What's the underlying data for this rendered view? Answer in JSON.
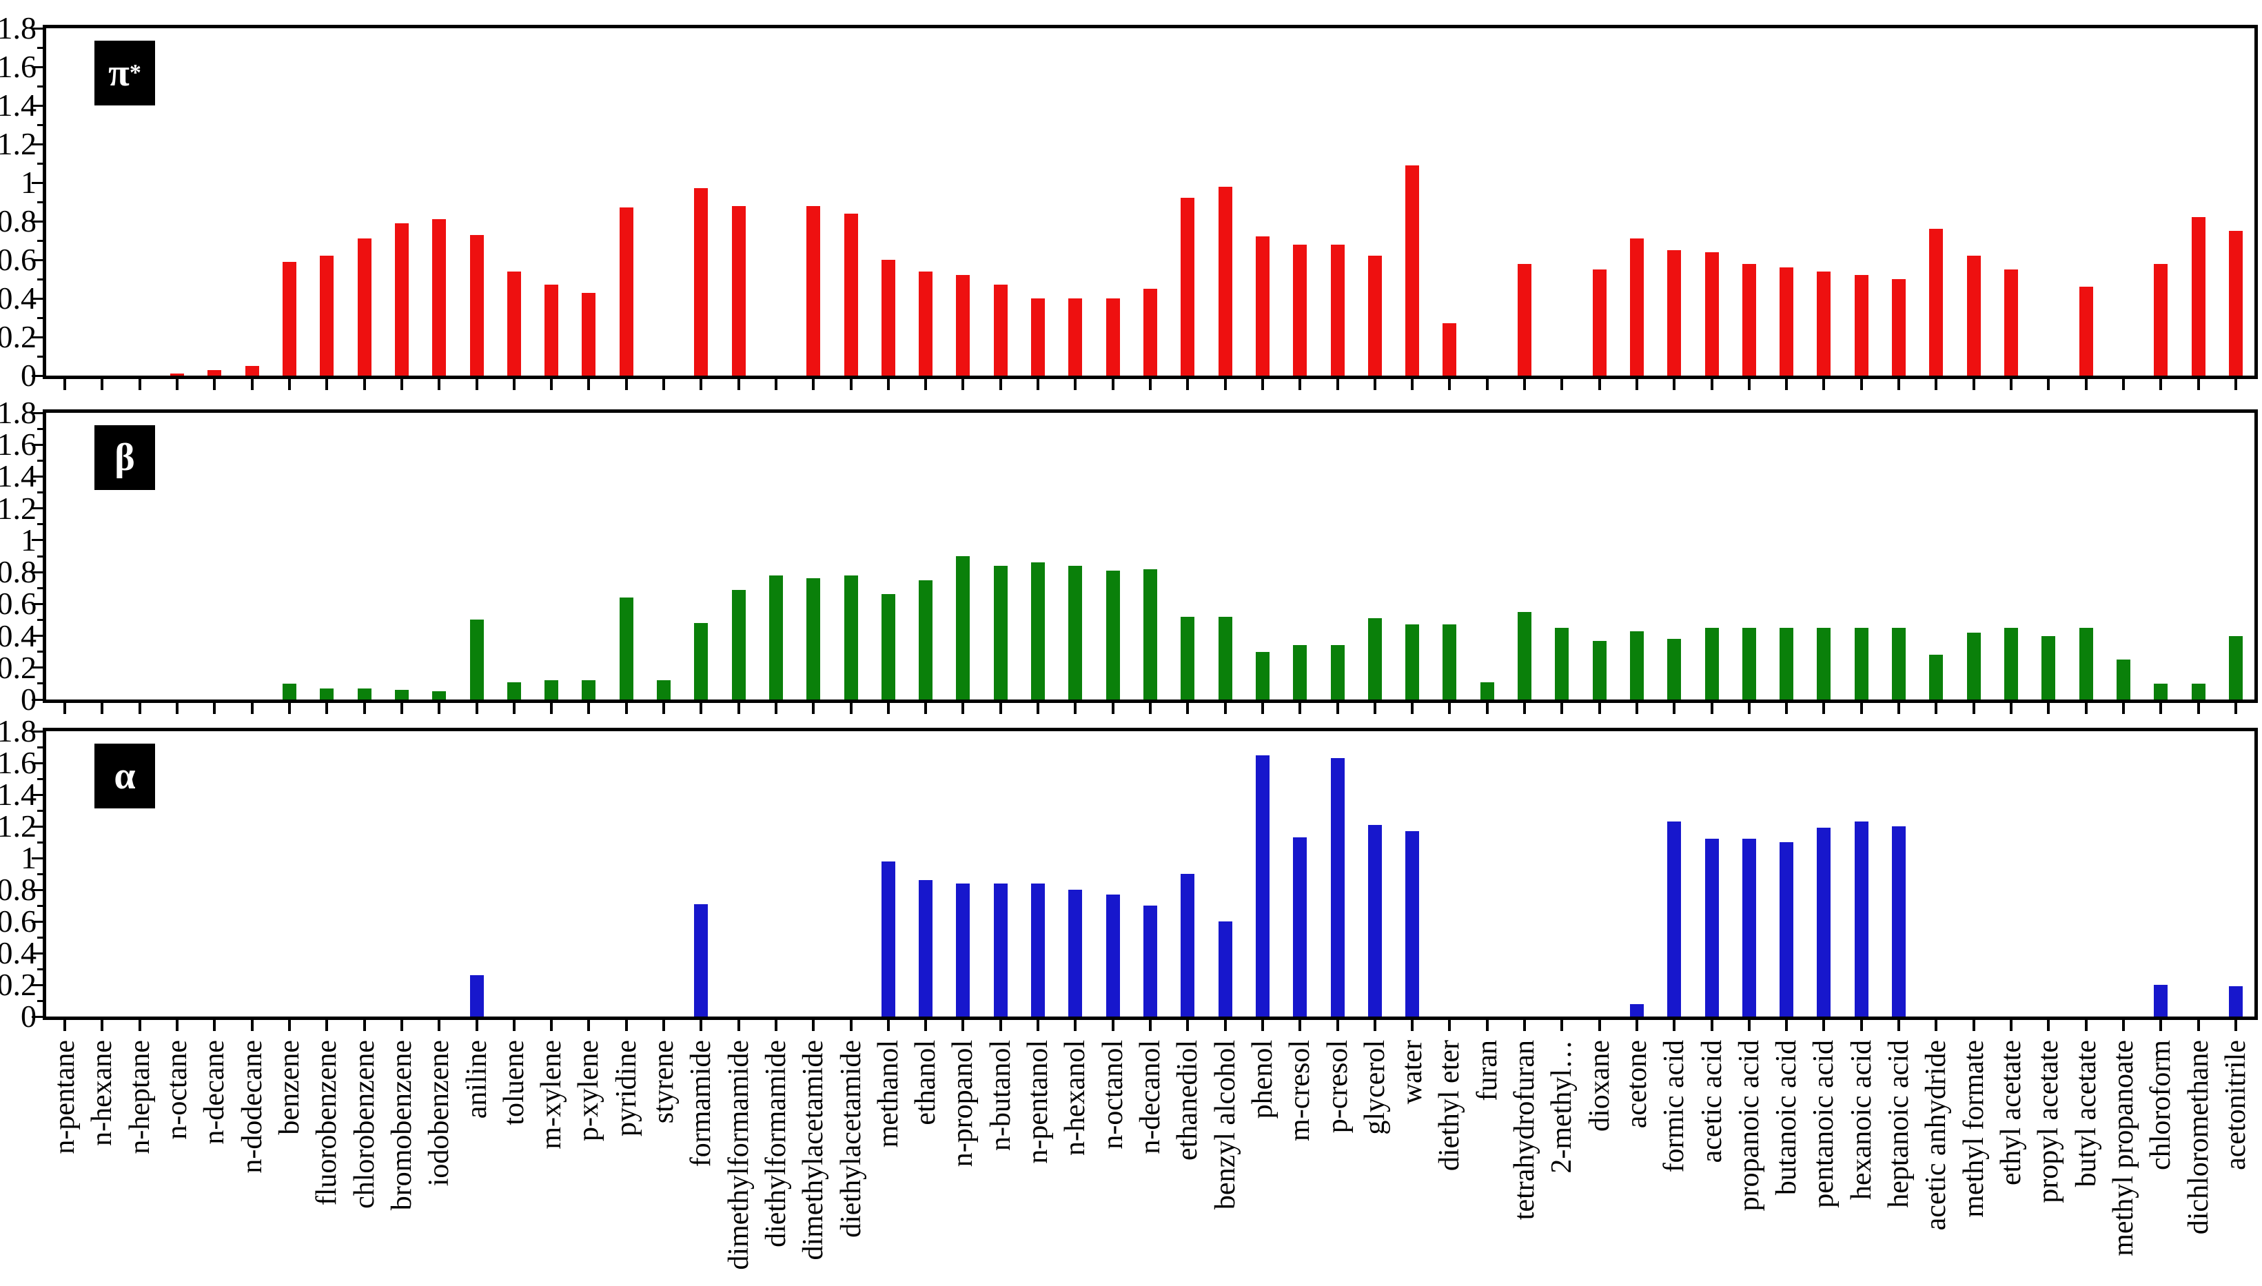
{
  "figure": {
    "background": "#ffffff",
    "font": "serif",
    "panel_frame_color": "#000000",
    "legend_style": "black box with white greek letter, top-left of each panel"
  },
  "chart_data": {
    "type": "bar",
    "grid": false,
    "ylim": [
      0,
      1.8
    ],
    "y_tick_step": 0.2,
    "y_minor_tick_step": 0.1,
    "y_tick_labels": [
      "1.8",
      "1.6",
      "1.4",
      "1.2",
      "1",
      "0.8",
      "0.6",
      "0.4",
      "0.2",
      "0"
    ],
    "categories": [
      "n-pentane",
      "n-hexane",
      "n-heptane",
      "n-octane",
      "n-decane",
      "n-dodecane",
      "benzene",
      "fluorobenzene",
      "chlorobenzene",
      "bromobenzene",
      "iodobenzene",
      "aniline",
      "toluene",
      "m-xylene",
      "p-xylene",
      "pyridine",
      "styrene",
      "formamide",
      "dimethylformamide",
      "diethylformamide",
      "dimethylacetamide",
      "diethylacetamide",
      "methanol",
      "ethanol",
      "n-propanol",
      "n-butanol",
      "n-pentanol",
      "n-hexanol",
      "n-octanol",
      "n-decanol",
      "ethanediol",
      "benzyl alcohol",
      "phenol",
      "m-cresol",
      "p-cresol",
      "glycerol",
      "water",
      "diethyl eter",
      "furan",
      "tetrahydrofuran",
      "2-methyl…",
      "dioxane",
      "acetone",
      "formic acid",
      "acetic acid",
      "propanoic acid",
      "butanoic acid",
      "pentanoic acid",
      "hexanoic acid",
      "heptanoic acid",
      "acetic anhydride",
      "methyl formate",
      "ethyl acetate",
      "propyl acetate",
      "butyl acetate",
      "methyl propanoate",
      "chloroform",
      "dichloromethane",
      "acetonitrile"
    ],
    "series": [
      {
        "name": "π*",
        "symbol": "π",
        "sup": "*",
        "color": "#ee1010",
        "values": [
          0,
          0,
          0,
          0.01,
          0.03,
          0.05,
          0.59,
          0.62,
          0.71,
          0.79,
          0.81,
          0.73,
          0.54,
          0.47,
          0.43,
          0.87,
          0,
          0.97,
          0.88,
          0,
          0.88,
          0.84,
          0.6,
          0.54,
          0.52,
          0.47,
          0.4,
          0.4,
          0.4,
          0.45,
          0.92,
          0.98,
          0.72,
          0.68,
          0.68,
          0.62,
          1.09,
          0.27,
          0,
          0.58,
          0,
          0.55,
          0.71,
          0.65,
          0.64,
          0.58,
          0.56,
          0.54,
          0.52,
          0.5,
          0.76,
          0.62,
          0.55,
          0,
          0.46,
          0,
          0.58,
          0.82,
          0.75
        ]
      },
      {
        "name": "β",
        "symbol": "β",
        "sup": "",
        "color": "#0a800a",
        "values": [
          0,
          0,
          0,
          0,
          0,
          0,
          0.1,
          0.07,
          0.07,
          0.06,
          0.05,
          0.5,
          0.11,
          0.12,
          0.12,
          0.64,
          0.12,
          0.48,
          0.69,
          0.78,
          0.76,
          0.78,
          0.66,
          0.75,
          0.9,
          0.84,
          0.86,
          0.84,
          0.81,
          0.82,
          0.52,
          0.52,
          0.3,
          0.34,
          0.34,
          0.51,
          0.47,
          0.47,
          0.11,
          0.55,
          0.45,
          0.37,
          0.43,
          0.38,
          0.45,
          0.45,
          0.45,
          0.45,
          0.45,
          0.45,
          0.28,
          0.42,
          0.45,
          0.4,
          0.45,
          0.25,
          0.1,
          0.1,
          0.4
        ]
      },
      {
        "name": "α",
        "symbol": "α",
        "sup": "",
        "color": "#1717cc",
        "values": [
          0,
          0,
          0,
          0,
          0,
          0,
          0,
          0,
          0,
          0,
          0,
          0.26,
          0,
          0,
          0,
          0,
          0,
          0.71,
          0,
          0,
          0,
          0,
          0.98,
          0.86,
          0.84,
          0.84,
          0.84,
          0.8,
          0.77,
          0.7,
          0.9,
          0.6,
          1.65,
          1.13,
          1.63,
          1.21,
          1.17,
          0,
          0,
          0,
          0,
          0,
          0.08,
          1.23,
          1.12,
          1.12,
          1.1,
          1.19,
          1.23,
          1.2,
          0,
          0,
          0,
          0,
          0,
          0,
          0.2,
          0,
          0.19
        ]
      }
    ],
    "legend_position": "top-left"
  }
}
